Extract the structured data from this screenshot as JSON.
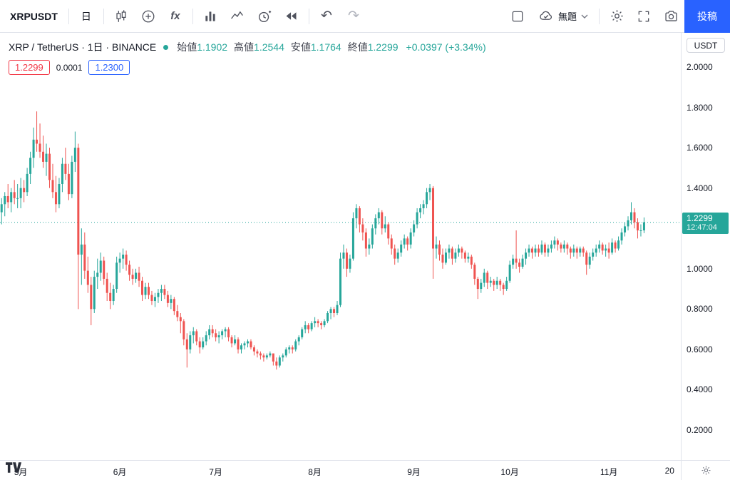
{
  "toolbar": {
    "symbol": "XRPUSDT",
    "interval": "日",
    "indicators_label": "fx",
    "untitled_label": "無題",
    "publish_label": "投稿"
  },
  "legend": {
    "title": "XRP / TetherUS · 1日 · BINANCE",
    "ohlc": [
      {
        "label": "始値",
        "value": "1.1902"
      },
      {
        "label": "高値",
        "value": "1.2544"
      },
      {
        "label": "安値",
        "value": "1.1764"
      },
      {
        "label": "終値",
        "value": "1.2299"
      }
    ],
    "change": "+0.0397 (+3.34%)"
  },
  "quote": {
    "bid": "1.2299",
    "spread": "0.0001",
    "ask": "1.2300"
  },
  "price_axis": {
    "currency": "USDT",
    "last_price": "1.2299",
    "countdown": "12:47:04"
  },
  "colors": {
    "up": "#26a69a",
    "down": "#ef5350",
    "accent": "#2962ff",
    "bid_red": "#f23645"
  },
  "chart_data": {
    "type": "candlestick",
    "title": "XRP / TetherUS",
    "exchange": "BINANCE",
    "interval": "1D",
    "grid": false,
    "price_range": [
      0.2,
      2.0
    ],
    "axis_prices": [
      2.0,
      1.8,
      1.6,
      1.4,
      1.0,
      0.8,
      0.6,
      0.4,
      0.2
    ],
    "last_price": 1.2299,
    "total_slots": 213,
    "month_ticks": [
      {
        "label": "5月",
        "index": 6
      },
      {
        "label": "6月",
        "index": 37
      },
      {
        "label": "7月",
        "index": 67
      },
      {
        "label": "8月",
        "index": 98
      },
      {
        "label": "9月",
        "index": 129
      },
      {
        "label": "10月",
        "index": 159
      },
      {
        "label": "11月",
        "index": 190
      },
      {
        "label": "20",
        "index": 209
      }
    ],
    "candles": [
      [
        1.28,
        1.35,
        1.22,
        1.32
      ],
      [
        1.32,
        1.38,
        1.26,
        1.36
      ],
      [
        1.36,
        1.42,
        1.3,
        1.33
      ],
      [
        1.33,
        1.4,
        1.28,
        1.38
      ],
      [
        1.38,
        1.44,
        1.32,
        1.35
      ],
      [
        1.35,
        1.42,
        1.3,
        1.35
      ],
      [
        1.35,
        1.45,
        1.3,
        1.4
      ],
      [
        1.4,
        1.44,
        1.33,
        1.38
      ],
      [
        1.38,
        1.5,
        1.36,
        1.47
      ],
      [
        1.47,
        1.58,
        1.42,
        1.55
      ],
      [
        1.55,
        1.7,
        1.5,
        1.64
      ],
      [
        1.64,
        1.78,
        1.58,
        1.62
      ],
      [
        1.62,
        1.72,
        1.55,
        1.58
      ],
      [
        1.58,
        1.66,
        1.5,
        1.53
      ],
      [
        1.53,
        1.62,
        1.46,
        1.57
      ],
      [
        1.57,
        1.6,
        1.4,
        1.44
      ],
      [
        1.44,
        1.52,
        1.35,
        1.38
      ],
      [
        1.38,
        1.46,
        1.28,
        1.32
      ],
      [
        1.32,
        1.45,
        1.3,
        1.42
      ],
      [
        1.42,
        1.55,
        1.38,
        1.52
      ],
      [
        1.52,
        1.6,
        1.44,
        1.47
      ],
      [
        1.47,
        1.52,
        1.34,
        1.37
      ],
      [
        1.37,
        1.56,
        1.35,
        1.53
      ],
      [
        1.53,
        1.68,
        1.48,
        1.6
      ],
      [
        1.6,
        1.62,
        0.8,
        1.07
      ],
      [
        1.07,
        1.2,
        0.92,
        1.12
      ],
      [
        1.12,
        1.18,
        0.95,
        0.99
      ],
      [
        0.99,
        1.06,
        0.88,
        0.92
      ],
      [
        0.92,
        0.96,
        0.72,
        0.8
      ],
      [
        0.8,
        0.99,
        0.78,
        0.96
      ],
      [
        0.96,
        1.05,
        0.9,
        0.98
      ],
      [
        0.98,
        1.08,
        0.94,
        1.04
      ],
      [
        1.04,
        1.06,
        0.92,
        0.95
      ],
      [
        0.95,
        0.98,
        0.84,
        0.88
      ],
      [
        0.88,
        0.93,
        0.8,
        0.84
      ],
      [
        0.84,
        0.92,
        0.82,
        0.9
      ],
      [
        0.9,
        1.06,
        0.88,
        1.03
      ],
      [
        1.03,
        1.08,
        0.98,
        1.05
      ],
      [
        1.05,
        1.1,
        1.0,
        1.07
      ],
      [
        1.07,
        1.09,
        0.99,
        1.02
      ],
      [
        1.02,
        1.04,
        0.94,
        0.97
      ],
      [
        0.97,
        1.0,
        0.92,
        0.95
      ],
      [
        0.95,
        1.0,
        0.93,
        0.98
      ],
      [
        0.98,
        1.01,
        0.91,
        0.94
      ],
      [
        0.94,
        0.96,
        0.84,
        0.87
      ],
      [
        0.87,
        0.93,
        0.85,
        0.91
      ],
      [
        0.91,
        0.93,
        0.85,
        0.87
      ],
      [
        0.87,
        0.89,
        0.82,
        0.84
      ],
      [
        0.84,
        0.88,
        0.81,
        0.86
      ],
      [
        0.86,
        0.9,
        0.83,
        0.88
      ],
      [
        0.88,
        0.92,
        0.84,
        0.9
      ],
      [
        0.9,
        0.92,
        0.85,
        0.87
      ],
      [
        0.87,
        0.89,
        0.81,
        0.83
      ],
      [
        0.83,
        0.87,
        0.8,
        0.85
      ],
      [
        0.85,
        0.86,
        0.77,
        0.79
      ],
      [
        0.79,
        0.82,
        0.74,
        0.76
      ],
      [
        0.76,
        0.78,
        0.68,
        0.74
      ],
      [
        0.74,
        0.75,
        0.62,
        0.65
      ],
      [
        0.65,
        0.68,
        0.51,
        0.6
      ],
      [
        0.6,
        0.69,
        0.58,
        0.67
      ],
      [
        0.67,
        0.71,
        0.63,
        0.69
      ],
      [
        0.69,
        0.7,
        0.62,
        0.64
      ],
      [
        0.64,
        0.66,
        0.58,
        0.61
      ],
      [
        0.61,
        0.66,
        0.6,
        0.64
      ],
      [
        0.64,
        0.69,
        0.62,
        0.67
      ],
      [
        0.67,
        0.72,
        0.65,
        0.7
      ],
      [
        0.7,
        0.72,
        0.66,
        0.68
      ],
      [
        0.68,
        0.7,
        0.64,
        0.66
      ],
      [
        0.66,
        0.69,
        0.63,
        0.67
      ],
      [
        0.67,
        0.7,
        0.65,
        0.69
      ],
      [
        0.69,
        0.71,
        0.66,
        0.7
      ],
      [
        0.7,
        0.71,
        0.64,
        0.66
      ],
      [
        0.66,
        0.67,
        0.61,
        0.63
      ],
      [
        0.63,
        0.67,
        0.62,
        0.65
      ],
      [
        0.65,
        0.66,
        0.58,
        0.6
      ],
      [
        0.6,
        0.63,
        0.58,
        0.62
      ],
      [
        0.62,
        0.64,
        0.6,
        0.63
      ],
      [
        0.63,
        0.65,
        0.61,
        0.64
      ],
      [
        0.64,
        0.65,
        0.6,
        0.61
      ],
      [
        0.61,
        0.62,
        0.57,
        0.59
      ],
      [
        0.59,
        0.6,
        0.56,
        0.58
      ],
      [
        0.58,
        0.59,
        0.55,
        0.57
      ],
      [
        0.57,
        0.58,
        0.54,
        0.56
      ],
      [
        0.56,
        0.58,
        0.55,
        0.57
      ],
      [
        0.57,
        0.59,
        0.56,
        0.58
      ],
      [
        0.58,
        0.58,
        0.52,
        0.54
      ],
      [
        0.54,
        0.56,
        0.5,
        0.52
      ],
      [
        0.52,
        0.57,
        0.51,
        0.56
      ],
      [
        0.56,
        0.58,
        0.54,
        0.57
      ],
      [
        0.57,
        0.61,
        0.56,
        0.6
      ],
      [
        0.6,
        0.62,
        0.58,
        0.61
      ],
      [
        0.61,
        0.62,
        0.58,
        0.6
      ],
      [
        0.6,
        0.65,
        0.59,
        0.64
      ],
      [
        0.64,
        0.67,
        0.62,
        0.66
      ],
      [
        0.66,
        0.71,
        0.65,
        0.7
      ],
      [
        0.7,
        0.74,
        0.68,
        0.72
      ],
      [
        0.72,
        0.73,
        0.68,
        0.7
      ],
      [
        0.7,
        0.74,
        0.69,
        0.73
      ],
      [
        0.73,
        0.76,
        0.71,
        0.74
      ],
      [
        0.74,
        0.75,
        0.71,
        0.73
      ],
      [
        0.73,
        0.74,
        0.7,
        0.72
      ],
      [
        0.72,
        0.75,
        0.71,
        0.74
      ],
      [
        0.74,
        0.79,
        0.73,
        0.78
      ],
      [
        0.78,
        0.81,
        0.75,
        0.8
      ],
      [
        0.8,
        0.81,
        0.76,
        0.78
      ],
      [
        0.78,
        0.84,
        0.77,
        0.82
      ],
      [
        0.82,
        1.08,
        0.81,
        1.05
      ],
      [
        1.05,
        1.12,
        1.0,
        1.08
      ],
      [
        1.08,
        1.1,
        0.96,
        1.0
      ],
      [
        1.0,
        1.07,
        0.98,
        1.05
      ],
      [
        1.05,
        1.28,
        1.04,
        1.25
      ],
      [
        1.25,
        1.32,
        1.2,
        1.3
      ],
      [
        1.3,
        1.31,
        1.18,
        1.22
      ],
      [
        1.22,
        1.25,
        1.14,
        1.18
      ],
      [
        1.18,
        1.2,
        1.06,
        1.1
      ],
      [
        1.1,
        1.15,
        1.07,
        1.12
      ],
      [
        1.12,
        1.22,
        1.1,
        1.2
      ],
      [
        1.2,
        1.27,
        1.17,
        1.25
      ],
      [
        1.25,
        1.3,
        1.22,
        1.28
      ],
      [
        1.28,
        1.29,
        1.17,
        1.2
      ],
      [
        1.2,
        1.26,
        1.18,
        1.22
      ],
      [
        1.22,
        1.23,
        1.12,
        1.15
      ],
      [
        1.15,
        1.17,
        1.07,
        1.1
      ],
      [
        1.1,
        1.12,
        1.02,
        1.05
      ],
      [
        1.05,
        1.1,
        1.03,
        1.08
      ],
      [
        1.08,
        1.14,
        1.06,
        1.12
      ],
      [
        1.12,
        1.17,
        1.1,
        1.15
      ],
      [
        1.15,
        1.16,
        1.09,
        1.12
      ],
      [
        1.12,
        1.2,
        1.1,
        1.18
      ],
      [
        1.18,
        1.24,
        1.16,
        1.22
      ],
      [
        1.22,
        1.3,
        1.2,
        1.28
      ],
      [
        1.28,
        1.32,
        1.25,
        1.3
      ],
      [
        1.3,
        1.34,
        1.27,
        1.32
      ],
      [
        1.32,
        1.4,
        1.3,
        1.38
      ],
      [
        1.38,
        1.42,
        1.34,
        1.4
      ],
      [
        1.4,
        1.41,
        0.95,
        1.1
      ],
      [
        1.1,
        1.16,
        1.05,
        1.12
      ],
      [
        1.12,
        1.14,
        1.04,
        1.07
      ],
      [
        1.07,
        1.1,
        1.0,
        1.03
      ],
      [
        1.03,
        1.1,
        1.02,
        1.08
      ],
      [
        1.08,
        1.12,
        1.05,
        1.1
      ],
      [
        1.1,
        1.11,
        1.02,
        1.05
      ],
      [
        1.05,
        1.1,
        1.03,
        1.08
      ],
      [
        1.08,
        1.12,
        1.06,
        1.1
      ],
      [
        1.1,
        1.11,
        1.05,
        1.08
      ],
      [
        1.08,
        1.09,
        1.03,
        1.05
      ],
      [
        1.05,
        1.08,
        1.03,
        1.06
      ],
      [
        1.06,
        1.07,
        1.0,
        1.02
      ],
      [
        1.02,
        1.03,
        0.92,
        0.95
      ],
      [
        0.95,
        0.96,
        0.85,
        0.9
      ],
      [
        0.9,
        0.95,
        0.88,
        0.93
      ],
      [
        0.93,
        1.0,
        0.91,
        0.98
      ],
      [
        0.98,
        0.99,
        0.9,
        0.93
      ],
      [
        0.93,
        0.96,
        0.91,
        0.94
      ],
      [
        0.94,
        0.95,
        0.89,
        0.92
      ],
      [
        0.92,
        0.96,
        0.9,
        0.94
      ],
      [
        0.94,
        0.95,
        0.89,
        0.92
      ],
      [
        0.92,
        0.93,
        0.87,
        0.9
      ],
      [
        0.9,
        0.96,
        0.89,
        0.94
      ],
      [
        0.94,
        1.04,
        0.93,
        1.02
      ],
      [
        1.02,
        1.07,
        1.0,
        1.05
      ],
      [
        1.05,
        1.19,
        1.0,
        1.03
      ],
      [
        1.03,
        1.05,
        0.98,
        1.01
      ],
      [
        1.01,
        1.07,
        1.0,
        1.05
      ],
      [
        1.05,
        1.1,
        1.02,
        1.08
      ],
      [
        1.08,
        1.12,
        1.06,
        1.1
      ],
      [
        1.1,
        1.11,
        1.05,
        1.08
      ],
      [
        1.08,
        1.12,
        1.06,
        1.1
      ],
      [
        1.1,
        1.12,
        1.06,
        1.08
      ],
      [
        1.08,
        1.14,
        1.07,
        1.12
      ],
      [
        1.12,
        1.13,
        1.06,
        1.08
      ],
      [
        1.08,
        1.12,
        1.06,
        1.1
      ],
      [
        1.1,
        1.14,
        1.08,
        1.12
      ],
      [
        1.12,
        1.16,
        1.1,
        1.14
      ],
      [
        1.14,
        1.15,
        1.09,
        1.12
      ],
      [
        1.12,
        1.13,
        1.08,
        1.1
      ],
      [
        1.1,
        1.14,
        1.08,
        1.12
      ],
      [
        1.12,
        1.13,
        1.07,
        1.1
      ],
      [
        1.1,
        1.11,
        1.05,
        1.08
      ],
      [
        1.08,
        1.12,
        1.06,
        1.1
      ],
      [
        1.1,
        1.11,
        1.05,
        1.08
      ],
      [
        1.08,
        1.11,
        1.06,
        1.1
      ],
      [
        1.1,
        1.11,
        1.06,
        1.08
      ],
      [
        1.08,
        1.09,
        0.97,
        1.02
      ],
      [
        1.02,
        1.08,
        1.0,
        1.06
      ],
      [
        1.06,
        1.1,
        1.04,
        1.08
      ],
      [
        1.08,
        1.12,
        1.06,
        1.1
      ],
      [
        1.1,
        1.14,
        1.08,
        1.12
      ],
      [
        1.12,
        1.13,
        1.07,
        1.09
      ],
      [
        1.09,
        1.12,
        1.06,
        1.1
      ],
      [
        1.1,
        1.13,
        1.05,
        1.08
      ],
      [
        1.08,
        1.15,
        1.07,
        1.13
      ],
      [
        1.13,
        1.14,
        1.08,
        1.1
      ],
      [
        1.1,
        1.16,
        1.09,
        1.14
      ],
      [
        1.14,
        1.2,
        1.12,
        1.18
      ],
      [
        1.18,
        1.23,
        1.16,
        1.21
      ],
      [
        1.21,
        1.26,
        1.19,
        1.24
      ],
      [
        1.24,
        1.33,
        1.22,
        1.28
      ],
      [
        1.28,
        1.3,
        1.2,
        1.23
      ],
      [
        1.23,
        1.25,
        1.15,
        1.19
      ],
      [
        1.19,
        1.22,
        1.16,
        1.1902
      ],
      [
        1.1902,
        1.2544,
        1.1764,
        1.2299
      ]
    ]
  }
}
